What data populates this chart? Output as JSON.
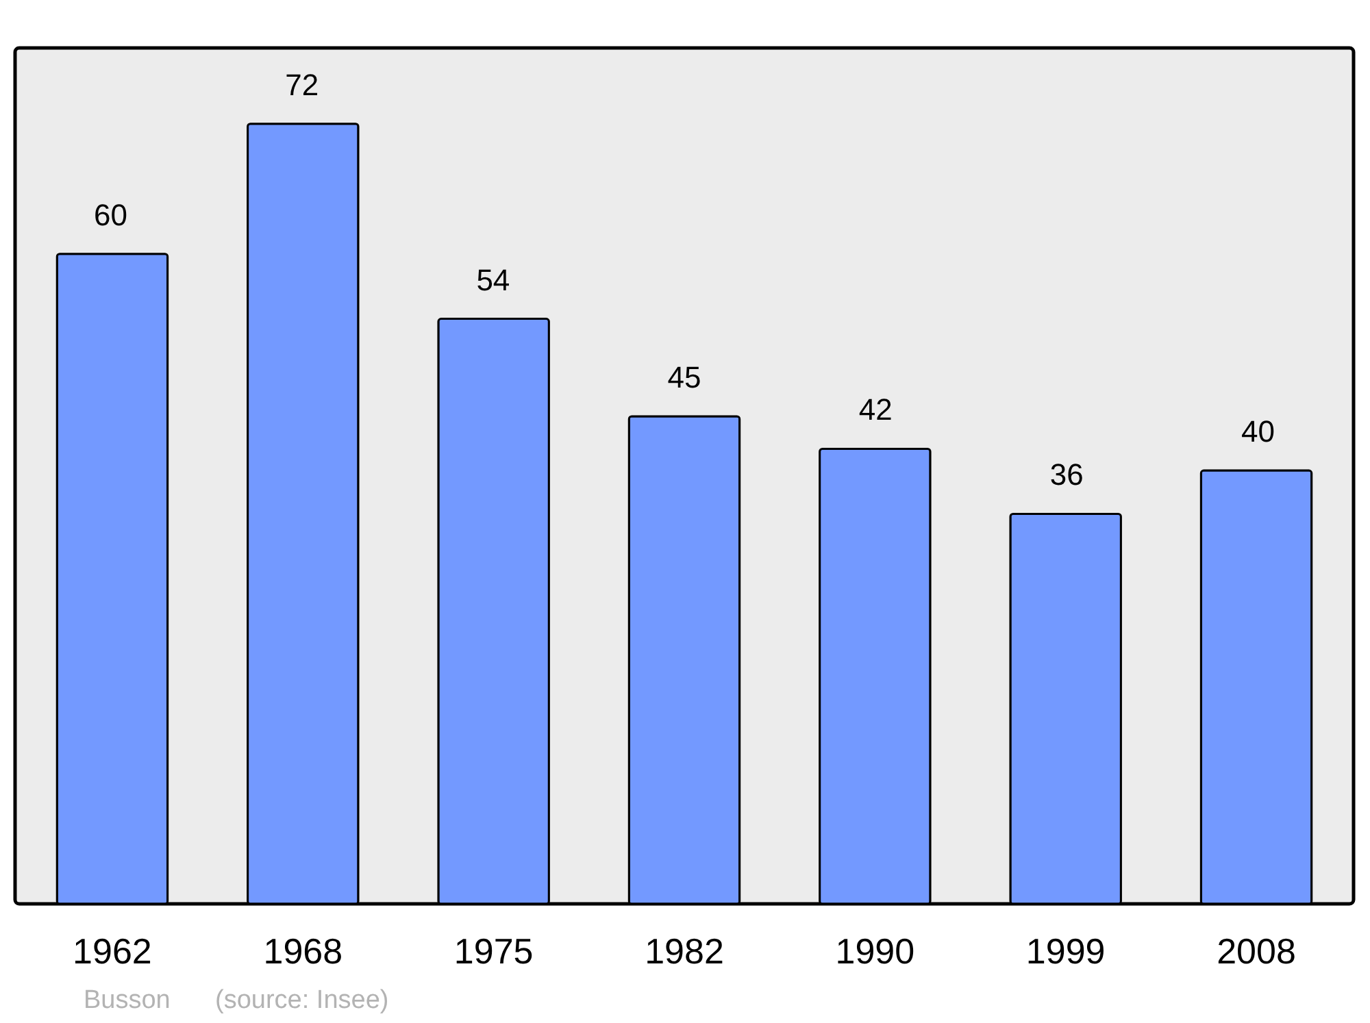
{
  "chart_data": {
    "type": "bar",
    "categories": [
      "1962",
      "1968",
      "1975",
      "1982",
      "1990",
      "1999",
      "2008"
    ],
    "values": [
      60,
      72,
      54,
      45,
      42,
      36,
      40
    ],
    "color": "#7399ff",
    "ylim": [
      0,
      79
    ],
    "data_labels": true,
    "tick_labels": "x",
    "annotations": [
      "Busson",
      "(source: Insee)"
    ]
  }
}
